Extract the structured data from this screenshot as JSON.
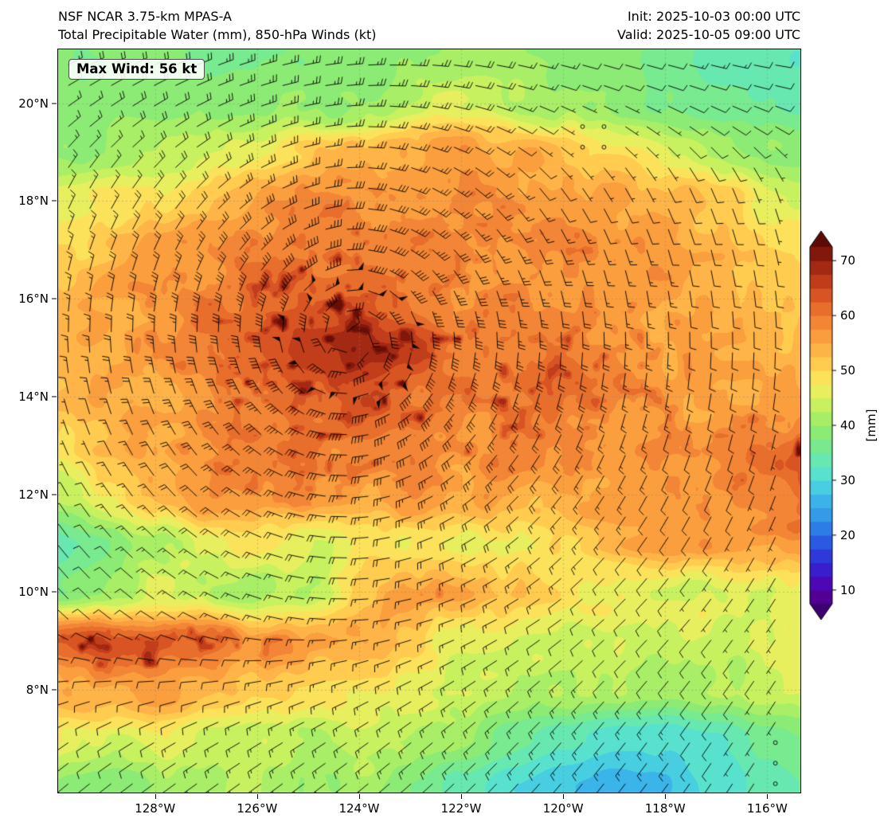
{
  "header": {
    "model": "NSF NCAR 3.75-km MPAS-A",
    "field": "Total Precipitable Water (mm), 850-hPa Winds (kt)",
    "init": "Init: 2025-10-03 00:00 UTC",
    "valid": "Valid: 2025-10-05 09:00 UTC"
  },
  "map": {
    "max_wind_label": "Max Wind: 56 kt"
  },
  "axes": {
    "x_ticks": [
      {
        "lon": -128,
        "label": "128°W"
      },
      {
        "lon": -126,
        "label": "126°W"
      },
      {
        "lon": -124,
        "label": "124°W"
      },
      {
        "lon": -122,
        "label": "122°W"
      },
      {
        "lon": -120,
        "label": "120°W"
      },
      {
        "lon": -118,
        "label": "118°W"
      },
      {
        "lon": -116,
        "label": "116°W"
      }
    ],
    "y_ticks": [
      {
        "lat": 20,
        "label": "20°N"
      },
      {
        "lat": 18,
        "label": "18°N"
      },
      {
        "lat": 16,
        "label": "16°N"
      },
      {
        "lat": 14,
        "label": "14°N"
      },
      {
        "lat": 12,
        "label": "12°N"
      },
      {
        "lat": 10,
        "label": "10°N"
      },
      {
        "lat": 8,
        "label": "8°N"
      }
    ]
  },
  "colorbar": {
    "unit": "[mm]",
    "ticks": [
      10,
      20,
      30,
      40,
      50,
      60,
      70
    ],
    "vmin": 7.5,
    "vmax": 72.5
  },
  "chart_data": {
    "type": "heatmap",
    "title": "Total Precipitable Water (mm), 850-hPa Winds (kt)",
    "units": "mm",
    "lon_range": [
      -129.9,
      -115.35
    ],
    "lat_range": [
      5.9,
      21.1
    ],
    "contour_interval": 2.5,
    "max_value_shown": 72,
    "colormap": [
      [
        5,
        "#3c0070"
      ],
      [
        10,
        "#5a00a0"
      ],
      [
        12.5,
        "#3f11c9"
      ],
      [
        17.5,
        "#2a47e0"
      ],
      [
        22.5,
        "#2f8fe8"
      ],
      [
        27.5,
        "#3fc0ea"
      ],
      [
        30,
        "#52dcd8"
      ],
      [
        32.5,
        "#5fe7c3"
      ],
      [
        35,
        "#6fe99f"
      ],
      [
        37.5,
        "#81ea7f"
      ],
      [
        40,
        "#97ec6a"
      ],
      [
        42.5,
        "#b8f063"
      ],
      [
        45,
        "#d9f25e"
      ],
      [
        47.5,
        "#f7ec5f"
      ],
      [
        50,
        "#ffd854"
      ],
      [
        52.5,
        "#ffc04b"
      ],
      [
        55,
        "#fca943"
      ],
      [
        57.5,
        "#f7923a"
      ],
      [
        60,
        "#ef7b31"
      ],
      [
        62.5,
        "#e26127"
      ],
      [
        65,
        "#cf481e"
      ],
      [
        67.5,
        "#b43217"
      ],
      [
        70,
        "#93200f"
      ],
      [
        72.5,
        "#6f1008"
      ],
      [
        76,
        "#5a0a04"
      ]
    ],
    "tpw_grid": {
      "lon_start": -130,
      "lon_step": 1,
      "nlon": 16,
      "lat_start": 21,
      "lat_step": -1,
      "nlat": 16,
      "values": [
        [
          38,
          38,
          38,
          37,
          37,
          38,
          39,
          40,
          40,
          40,
          39,
          38,
          36,
          34,
          33,
          32
        ],
        [
          39,
          39,
          39,
          40,
          40,
          41,
          42,
          43,
          43,
          42,
          41,
          40,
          38,
          36,
          35,
          34
        ],
        [
          40,
          41,
          43,
          45,
          48,
          52,
          55,
          56,
          56,
          55,
          52,
          48,
          45,
          43,
          41,
          39
        ],
        [
          46,
          48,
          50,
          52,
          55,
          57,
          58,
          58,
          58,
          57,
          56,
          55,
          53,
          51,
          49,
          47
        ],
        [
          50,
          52,
          55,
          57,
          58,
          59,
          60,
          60,
          59,
          58,
          58,
          57,
          56,
          55,
          53,
          51
        ],
        [
          52,
          54,
          56,
          58,
          60,
          62,
          64,
          62,
          60,
          59,
          58,
          58,
          57,
          56,
          55,
          53
        ],
        [
          53,
          55,
          57,
          59,
          62,
          67,
          72,
          68,
          62,
          60,
          59,
          58,
          57,
          56,
          55,
          54
        ],
        [
          53,
          55,
          57,
          58,
          60,
          63,
          66,
          63,
          60,
          59,
          58,
          58,
          57,
          56,
          55,
          54
        ],
        [
          50,
          53,
          56,
          58,
          59,
          60,
          61,
          59,
          58,
          58,
          57,
          57,
          57,
          58,
          60,
          63
        ],
        [
          44,
          49,
          53,
          56,
          57,
          58,
          58,
          57,
          56,
          56,
          56,
          56,
          56,
          57,
          58,
          61
        ],
        [
          34,
          37,
          42,
          46,
          48,
          47,
          48,
          49,
          48,
          50,
          52,
          54,
          55,
          56,
          57,
          58
        ],
        [
          38,
          41,
          44,
          44,
          42,
          43,
          52,
          58,
          56,
          52,
          50,
          48,
          47,
          47,
          47,
          47
        ],
        [
          62,
          64,
          63,
          60,
          58,
          56,
          54,
          50,
          47,
          45,
          44,
          44,
          44,
          44,
          45,
          45
        ],
        [
          52,
          54,
          55,
          54,
          52,
          50,
          48,
          46,
          44,
          43,
          42,
          41,
          40,
          41,
          42,
          44
        ],
        [
          46,
          46,
          46,
          45,
          45,
          44,
          44,
          43,
          40,
          36,
          33,
          30,
          30,
          32,
          36,
          38
        ],
        [
          40,
          40,
          41,
          42,
          42,
          42,
          41,
          38,
          34,
          30,
          27,
          26,
          27,
          30,
          33,
          35
        ]
      ]
    },
    "wind": {
      "max_wind_kt": 56,
      "vortex": {
        "lon": -124.15,
        "lat": 15.2,
        "vmax_kt": 56,
        "rmax_deg": 1.1,
        "decay": 0.55,
        "taper_deg": 9
      },
      "south_flow": [
        5,
        9
      ],
      "north_flow": [
        -9,
        -2
      ],
      "barb_spacing_deg": 0.42,
      "calm_zones": [
        {
          "lon": -119.4,
          "lat": 19.2,
          "r": 1.6
        },
        {
          "lon": -130.1,
          "lat": 12.9,
          "r": 1.1
        },
        {
          "lon": -115.7,
          "lat": 6.5,
          "r": 1.4
        }
      ]
    }
  }
}
